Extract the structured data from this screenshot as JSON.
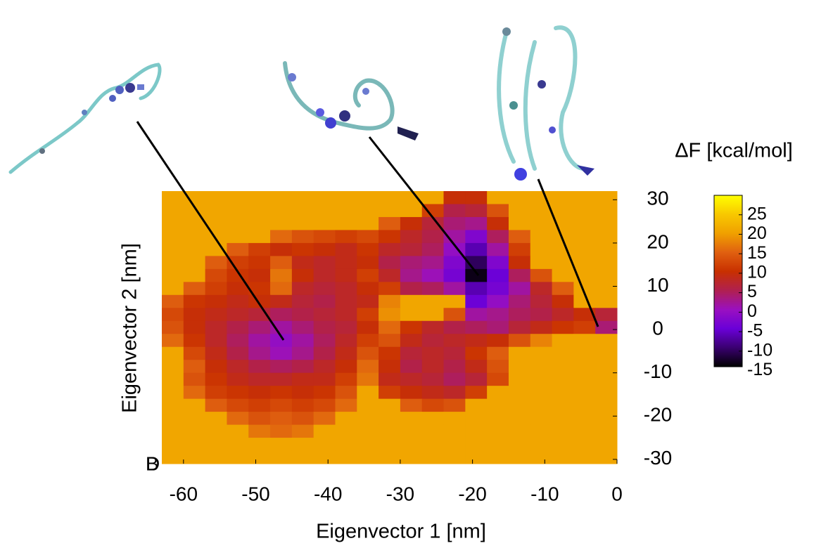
{
  "chart_data": {
    "type": "heatmap",
    "xlabel": "Eigenvector 1 [nm]",
    "ylabel": "Eigenvector 2 [nm]",
    "colorbar_label": "ΔF [kcal/mol]",
    "stray_labels": [
      "B",
      "D"
    ],
    "xlim": [
      -63,
      0
    ],
    "ylim": [
      -31,
      32
    ],
    "xticks": [
      -60,
      -50,
      -40,
      -30,
      -20,
      -10,
      0
    ],
    "yticks": [
      30,
      20,
      10,
      0,
      -10,
      -20,
      -30
    ],
    "clim": [
      -14,
      30
    ],
    "cticks": [
      25,
      20,
      15,
      10,
      5,
      0,
      -5,
      -10,
      -15
    ],
    "colors": [
      "#000000",
      "#3a0070",
      "#6a00d8",
      "#9a10c0",
      "#b02050",
      "#c83000",
      "#e06010",
      "#f0a000",
      "#f8c800",
      "#ffff00"
    ],
    "x_edges": [
      -63,
      -60,
      -57,
      -54,
      -51,
      -48,
      -45,
      -42,
      -39,
      -36,
      -33,
      -30,
      -27,
      -24,
      -21,
      -18,
      -15,
      -12,
      -9,
      -6,
      -3,
      0
    ],
    "y_edges": [
      32,
      29,
      26,
      23,
      20,
      17,
      14,
      11,
      8,
      5,
      2,
      -1,
      -4,
      -7,
      -10,
      -13,
      -16,
      -19,
      -22,
      -25,
      -28,
      -31
    ],
    "z": [
      [
        21,
        21,
        21,
        21,
        21,
        21,
        21,
        21,
        21,
        21,
        21,
        21,
        21,
        10,
        10,
        21,
        21,
        21,
        21,
        21,
        21
      ],
      [
        21,
        21,
        21,
        21,
        21,
        21,
        21,
        21,
        21,
        21,
        21,
        21,
        12,
        6,
        7,
        14,
        21,
        21,
        21,
        21,
        21
      ],
      [
        21,
        21,
        21,
        21,
        21,
        21,
        21,
        21,
        21,
        21,
        15,
        10,
        7,
        4,
        3,
        10,
        21,
        21,
        21,
        21,
        21
      ],
      [
        21,
        21,
        21,
        21,
        21,
        16,
        14,
        13,
        12,
        13,
        11,
        8,
        6,
        2,
        -2,
        5,
        15,
        21,
        21,
        21,
        21
      ],
      [
        21,
        21,
        21,
        15,
        12,
        10,
        11,
        10,
        9,
        11,
        8,
        7,
        5,
        0,
        -6,
        2,
        12,
        21,
        21,
        21,
        21
      ],
      [
        21,
        21,
        15,
        12,
        11,
        15,
        9,
        8,
        9,
        10,
        6,
        4,
        3,
        -2,
        -10,
        -2,
        10,
        21,
        21,
        21,
        21
      ],
      [
        21,
        21,
        13,
        11,
        10,
        17,
        10,
        8,
        9,
        12,
        8,
        3,
        1,
        -3,
        -13,
        -4,
        5,
        14,
        21,
        21,
        21
      ],
      [
        21,
        15,
        12,
        10,
        11,
        16,
        8,
        7,
        8,
        10,
        12,
        6,
        5,
        2,
        -6,
        -3,
        2,
        8,
        15,
        21,
        21
      ],
      [
        15,
        11,
        10,
        9,
        10,
        9,
        7,
        6,
        8,
        9,
        18,
        21,
        21,
        21,
        -4,
        0,
        4,
        7,
        10,
        21,
        21
      ],
      [
        13,
        10,
        9,
        8,
        7,
        5,
        6,
        7,
        8,
        12,
        19,
        21,
        21,
        14,
        2,
        3,
        5,
        6,
        8,
        10,
        7
      ],
      [
        14,
        10,
        8,
        6,
        4,
        2,
        4,
        6,
        7,
        10,
        16,
        11,
        8,
        6,
        5,
        4,
        7,
        9,
        11,
        12,
        4
      ],
      [
        16,
        11,
        8,
        5,
        2,
        0,
        2,
        5,
        8,
        12,
        14,
        9,
        7,
        8,
        9,
        10,
        14,
        18,
        21,
        21,
        21
      ],
      [
        21,
        13,
        9,
        6,
        3,
        1,
        3,
        6,
        9,
        14,
        11,
        7,
        8,
        7,
        11,
        15,
        21,
        21,
        21,
        21,
        21
      ],
      [
        21,
        15,
        10,
        8,
        6,
        5,
        6,
        8,
        10,
        16,
        10,
        6,
        8,
        6,
        9,
        14,
        21,
        21,
        21,
        21,
        21
      ],
      [
        21,
        14,
        11,
        9,
        8,
        8,
        9,
        9,
        12,
        17,
        9,
        8,
        7,
        5,
        7,
        13,
        21,
        21,
        21,
        21,
        21
      ],
      [
        21,
        16,
        12,
        11,
        10,
        11,
        10,
        11,
        14,
        21,
        12,
        10,
        9,
        8,
        12,
        21,
        21,
        21,
        21,
        21,
        21
      ],
      [
        21,
        21,
        15,
        13,
        12,
        13,
        12,
        13,
        16,
        21,
        21,
        15,
        13,
        14,
        21,
        21,
        21,
        21,
        21,
        21,
        21
      ],
      [
        21,
        21,
        21,
        16,
        14,
        15,
        14,
        16,
        21,
        21,
        21,
        21,
        21,
        21,
        21,
        21,
        21,
        21,
        21,
        21,
        21
      ],
      [
        21,
        21,
        21,
        21,
        17,
        16,
        17,
        21,
        21,
        21,
        21,
        21,
        21,
        21,
        21,
        21,
        21,
        21,
        21,
        21,
        21
      ],
      [
        21,
        21,
        21,
        21,
        21,
        21,
        21,
        21,
        21,
        21,
        21,
        21,
        21,
        21,
        21,
        21,
        21,
        21,
        21,
        21,
        21
      ],
      [
        21,
        21,
        21,
        21,
        21,
        21,
        21,
        21,
        21,
        21,
        21,
        21,
        21,
        21,
        21,
        21,
        21,
        21,
        21,
        21,
        21
      ]
    ]
  }
}
